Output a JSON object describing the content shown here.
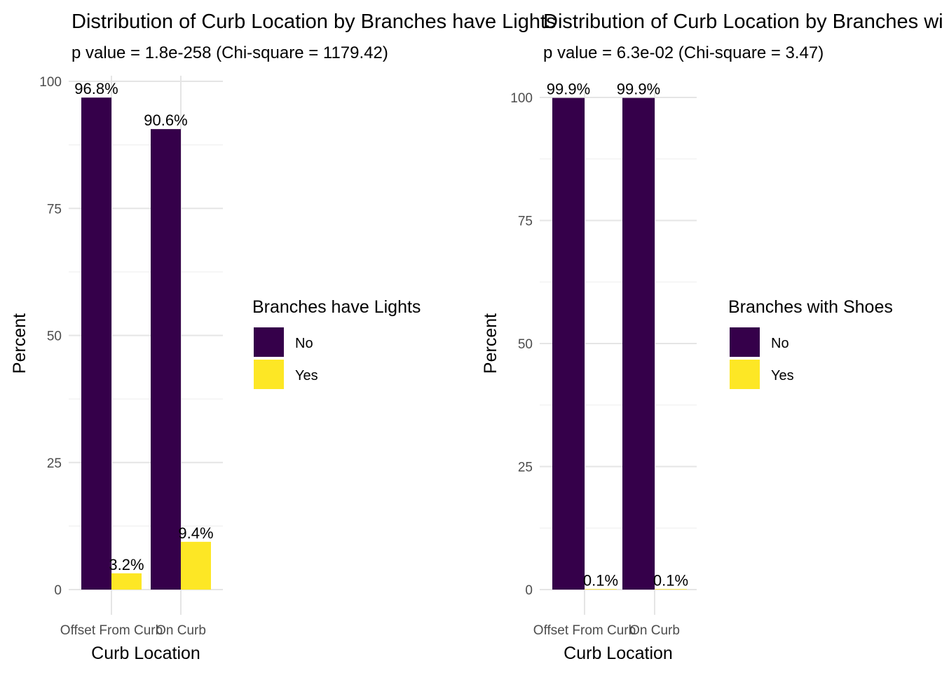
{
  "chart_data": [
    {
      "type": "bar",
      "title": "Distribution of Curb Location by Branches have Lights",
      "subtitle": "p value = 1.8e-258 (Chi-square = 1179.42)",
      "xlabel": "Curb Location",
      "ylabel": "Percent",
      "categories": [
        "Offset From Curb",
        "On Curb"
      ],
      "ylim": [
        0,
        100
      ],
      "yticks": [
        "0",
        "25",
        "50",
        "75",
        "100"
      ],
      "grid": true,
      "legend": {
        "title": "Branches have Lights",
        "position": "right"
      },
      "series": [
        {
          "name": "No",
          "color": "#35004A",
          "values": [
            96.8,
            90.6
          ],
          "labels": [
            "96.8%",
            "90.6%"
          ]
        },
        {
          "name": "Yes",
          "color": "#FDE725",
          "values": [
            3.2,
            9.4
          ],
          "labels": [
            "3.2%",
            "9.4%"
          ]
        }
      ]
    },
    {
      "type": "bar",
      "title": "Distribution of Curb Location by Branches with Shoes",
      "subtitle": "p value = 6.3e-02 (Chi-square = 3.47)",
      "xlabel": "Curb Location",
      "ylabel": "Percent",
      "categories": [
        "Offset From Curb",
        "On Curb"
      ],
      "ylim": [
        0,
        100
      ],
      "yticks": [
        "0",
        "25",
        "50",
        "75",
        "100"
      ],
      "grid": true,
      "legend": {
        "title": "Branches with Shoes",
        "position": "right"
      },
      "series": [
        {
          "name": "No",
          "color": "#35004A",
          "values": [
            99.9,
            99.9
          ],
          "labels": [
            "99.9%",
            "99.9%"
          ]
        },
        {
          "name": "Yes",
          "color": "#FDE725",
          "values": [
            0.1,
            0.1
          ],
          "labels": [
            "0.1%",
            "0.1%"
          ]
        }
      ]
    }
  ]
}
